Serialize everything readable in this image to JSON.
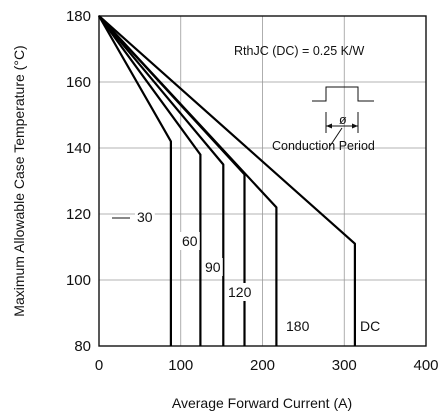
{
  "chart_data": {
    "type": "line",
    "xlabel": "Average Forward Current (A)",
    "ylabel": "Maximum Allowable Case Temperature (°C)",
    "xlim": [
      0,
      400
    ],
    "ylim": [
      80,
      180
    ],
    "xticks": [
      "0",
      "100",
      "200",
      "300",
      "400"
    ],
    "yticks": [
      "80",
      "100",
      "120",
      "140",
      "160",
      "180"
    ],
    "grid": true,
    "series": [
      {
        "name": "30",
        "points": [
          [
            0,
            180
          ],
          [
            88,
            142
          ],
          [
            88,
            80
          ]
        ]
      },
      {
        "name": "60",
        "points": [
          [
            0,
            180
          ],
          [
            124,
            138
          ],
          [
            124,
            80
          ]
        ]
      },
      {
        "name": "90",
        "points": [
          [
            0,
            180
          ],
          [
            152,
            135
          ],
          [
            152,
            80
          ]
        ]
      },
      {
        "name": "120",
        "points": [
          [
            0,
            180
          ],
          [
            178,
            132
          ],
          [
            178,
            80
          ]
        ]
      },
      {
        "name": "180",
        "points": [
          [
            0,
            180
          ],
          [
            217,
            122
          ],
          [
            217,
            80
          ]
        ]
      },
      {
        "name": "DC",
        "points": [
          [
            0,
            180
          ],
          [
            313,
            111
          ],
          [
            313,
            80
          ]
        ]
      }
    ],
    "annotations": {
      "rth": "RthJC (DC) = 0.25 K/W",
      "phi": "ø",
      "conduction": "Conduction Period"
    }
  }
}
